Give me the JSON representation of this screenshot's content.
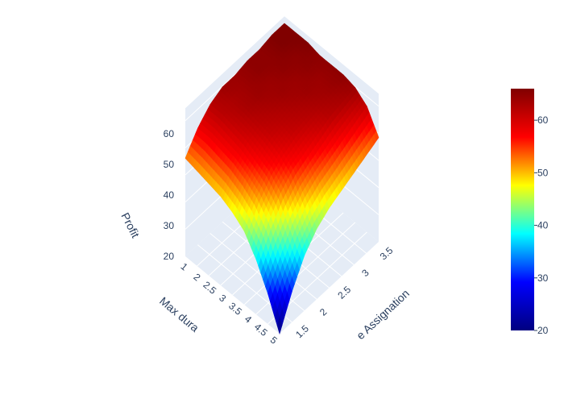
{
  "chart_data": {
    "type": "surface",
    "x_axis": {
      "title": "Time Assignation",
      "title_visible": "e Assignation",
      "range": [
        1,
        4
      ],
      "ticks": [
        "1.5",
        "2",
        "2.5",
        "3",
        "3.5"
      ]
    },
    "y_axis": {
      "title": "Max duration",
      "title_visible": "Max dura",
      "range": [
        1,
        5
      ],
      "ticks": [
        "1",
        "2",
        "2.5",
        "3",
        "3.5",
        "4",
        "4.5",
        "5"
      ]
    },
    "z_axis": {
      "title": "Profit",
      "range": [
        20,
        66
      ],
      "ticks": [
        "20",
        "30",
        "40",
        "50",
        "60"
      ]
    },
    "colorbar": {
      "colorscale": "jet",
      "range": [
        20,
        66
      ],
      "ticks": [
        "20",
        "30",
        "40",
        "50",
        "60"
      ],
      "colors": [
        "#000080",
        "#0000ff",
        "#00ffff",
        "#ffff00",
        "#ff0000",
        "#800000"
      ]
    },
    "surface_z": [
      [
        20,
        30,
        38,
        43,
        46,
        48,
        50,
        52,
        54
      ],
      [
        30,
        38,
        45,
        50,
        53,
        55,
        57,
        59,
        61
      ],
      [
        38,
        46,
        52,
        56,
        58,
        60,
        62,
        63,
        64
      ],
      [
        44,
        51,
        56,
        59,
        61,
        62,
        63,
        64,
        65
      ],
      [
        47,
        54,
        58,
        61,
        62,
        63,
        64,
        64,
        65
      ],
      [
        49,
        56,
        60,
        62,
        63,
        64,
        64,
        65,
        65
      ],
      [
        50,
        57,
        61,
        63,
        64,
        64,
        65,
        65,
        66
      ],
      [
        51,
        58,
        62,
        63,
        64,
        65,
        65,
        66,
        66
      ],
      [
        52,
        58,
        62,
        64,
        64,
        65,
        65,
        66,
        66
      ]
    ],
    "grid": true,
    "background": "#e5ecf6"
  }
}
